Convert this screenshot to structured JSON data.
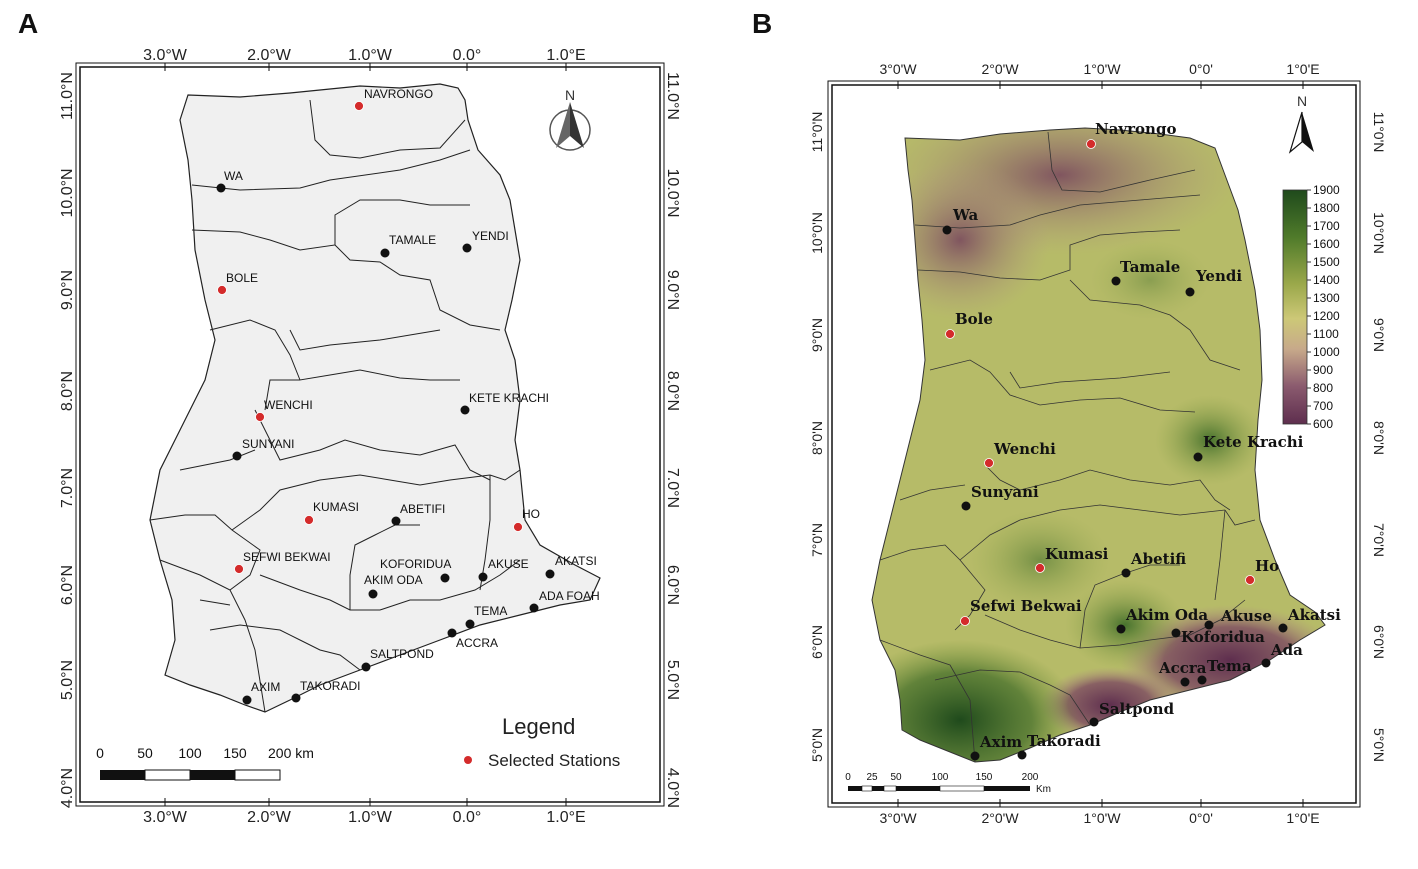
{
  "panels": [
    {
      "letter": "A",
      "lon_ticks": [
        "3.0°W",
        "2.0°W",
        "1.0°W",
        "0.0°",
        "1.0°E"
      ],
      "lat_ticks": [
        "4.0°N",
        "5.0°N",
        "6.0°N",
        "7.0°N",
        "8.0°N",
        "9.0°N",
        "10.0°N",
        "11.0°N"
      ],
      "north_label": "N",
      "stations": [
        {
          "name": "NAVRONGO",
          "selected": true
        },
        {
          "name": "WA",
          "selected": false
        },
        {
          "name": "TAMALE",
          "selected": false
        },
        {
          "name": "YENDI",
          "selected": false
        },
        {
          "name": "BOLE",
          "selected": true
        },
        {
          "name": "WENCHI",
          "selected": true
        },
        {
          "name": "KETE KRACHI",
          "selected": false
        },
        {
          "name": "SUNYANI",
          "selected": false
        },
        {
          "name": "KUMASI",
          "selected": true
        },
        {
          "name": "ABETIFI",
          "selected": false
        },
        {
          "name": "HO",
          "selected": true
        },
        {
          "name": "SEFWI BEKWAI",
          "selected": true
        },
        {
          "name": "KOFORIDUA",
          "selected": false
        },
        {
          "name": "AKIM ODA",
          "selected": false
        },
        {
          "name": "AKUSE",
          "selected": false
        },
        {
          "name": "AKATSI",
          "selected": false
        },
        {
          "name": "ADA FOAH",
          "selected": false
        },
        {
          "name": "TEMA",
          "selected": false
        },
        {
          "name": "ACCRA",
          "selected": false
        },
        {
          "name": "SALTPOND",
          "selected": false
        },
        {
          "name": "AXIM",
          "selected": false
        },
        {
          "name": "TAKORADI",
          "selected": false
        }
      ],
      "legend": {
        "title": "Legend",
        "item": "Selected Stations"
      },
      "scale": {
        "labels": [
          "0",
          "50",
          "100",
          "150",
          "200 km"
        ]
      },
      "colors": {
        "selected": "#d42b2b",
        "other": "#111111",
        "land": "#f0f0f0"
      }
    },
    {
      "letter": "B",
      "lon_ticks": [
        "3°0'W",
        "2°0'W",
        "1°0'W",
        "0°0'",
        "1°0'E"
      ],
      "lat_ticks": [
        "5°0'N",
        "6°0'N",
        "7°0'N",
        "8°0'N",
        "9°0'N",
        "10°0'N",
        "11°0'N"
      ],
      "north_label": "N",
      "stations": [
        {
          "name": "Navrongo",
          "selected": true
        },
        {
          "name": "Wa",
          "selected": false
        },
        {
          "name": "Tamale",
          "selected": false
        },
        {
          "name": "Yendi",
          "selected": false
        },
        {
          "name": "Bole",
          "selected": true
        },
        {
          "name": "Kete Krachi",
          "selected": false
        },
        {
          "name": "Wenchi",
          "selected": true
        },
        {
          "name": "Sunyani",
          "selected": false
        },
        {
          "name": "Kumasi",
          "selected": true
        },
        {
          "name": "Abetifi",
          "selected": false
        },
        {
          "name": "Ho",
          "selected": true
        },
        {
          "name": "Sefwi Bekwai",
          "selected": true
        },
        {
          "name": "Akim Oda",
          "selected": false
        },
        {
          "name": "Akuse",
          "selected": false
        },
        {
          "name": "Akatsi",
          "selected": false
        },
        {
          "name": "Koforidua",
          "selected": false
        },
        {
          "name": "Ada",
          "selected": false
        },
        {
          "name": "Accra",
          "selected": false
        },
        {
          "name": "Tema",
          "selected": false
        },
        {
          "name": "Saltpond",
          "selected": false
        },
        {
          "name": "Axim",
          "selected": false
        },
        {
          "name": "Takoradi",
          "selected": false
        }
      ],
      "colorbar": {
        "labels": [
          "1900",
          "1800",
          "1700",
          "1600",
          "1500",
          "1400",
          "1300",
          "1200",
          "1100",
          "1000",
          "900",
          "800",
          "700",
          "600"
        ],
        "colors": [
          "#1f4a1c",
          "#4f7a2a",
          "#9aa84a",
          "#cdc877",
          "#c7a98a",
          "#8a5a6e",
          "#5e2e4e"
        ]
      },
      "scale": {
        "labels": [
          "0",
          "25",
          "50",
          "100",
          "150",
          "200"
        ],
        "unit": "Km"
      }
    }
  ]
}
